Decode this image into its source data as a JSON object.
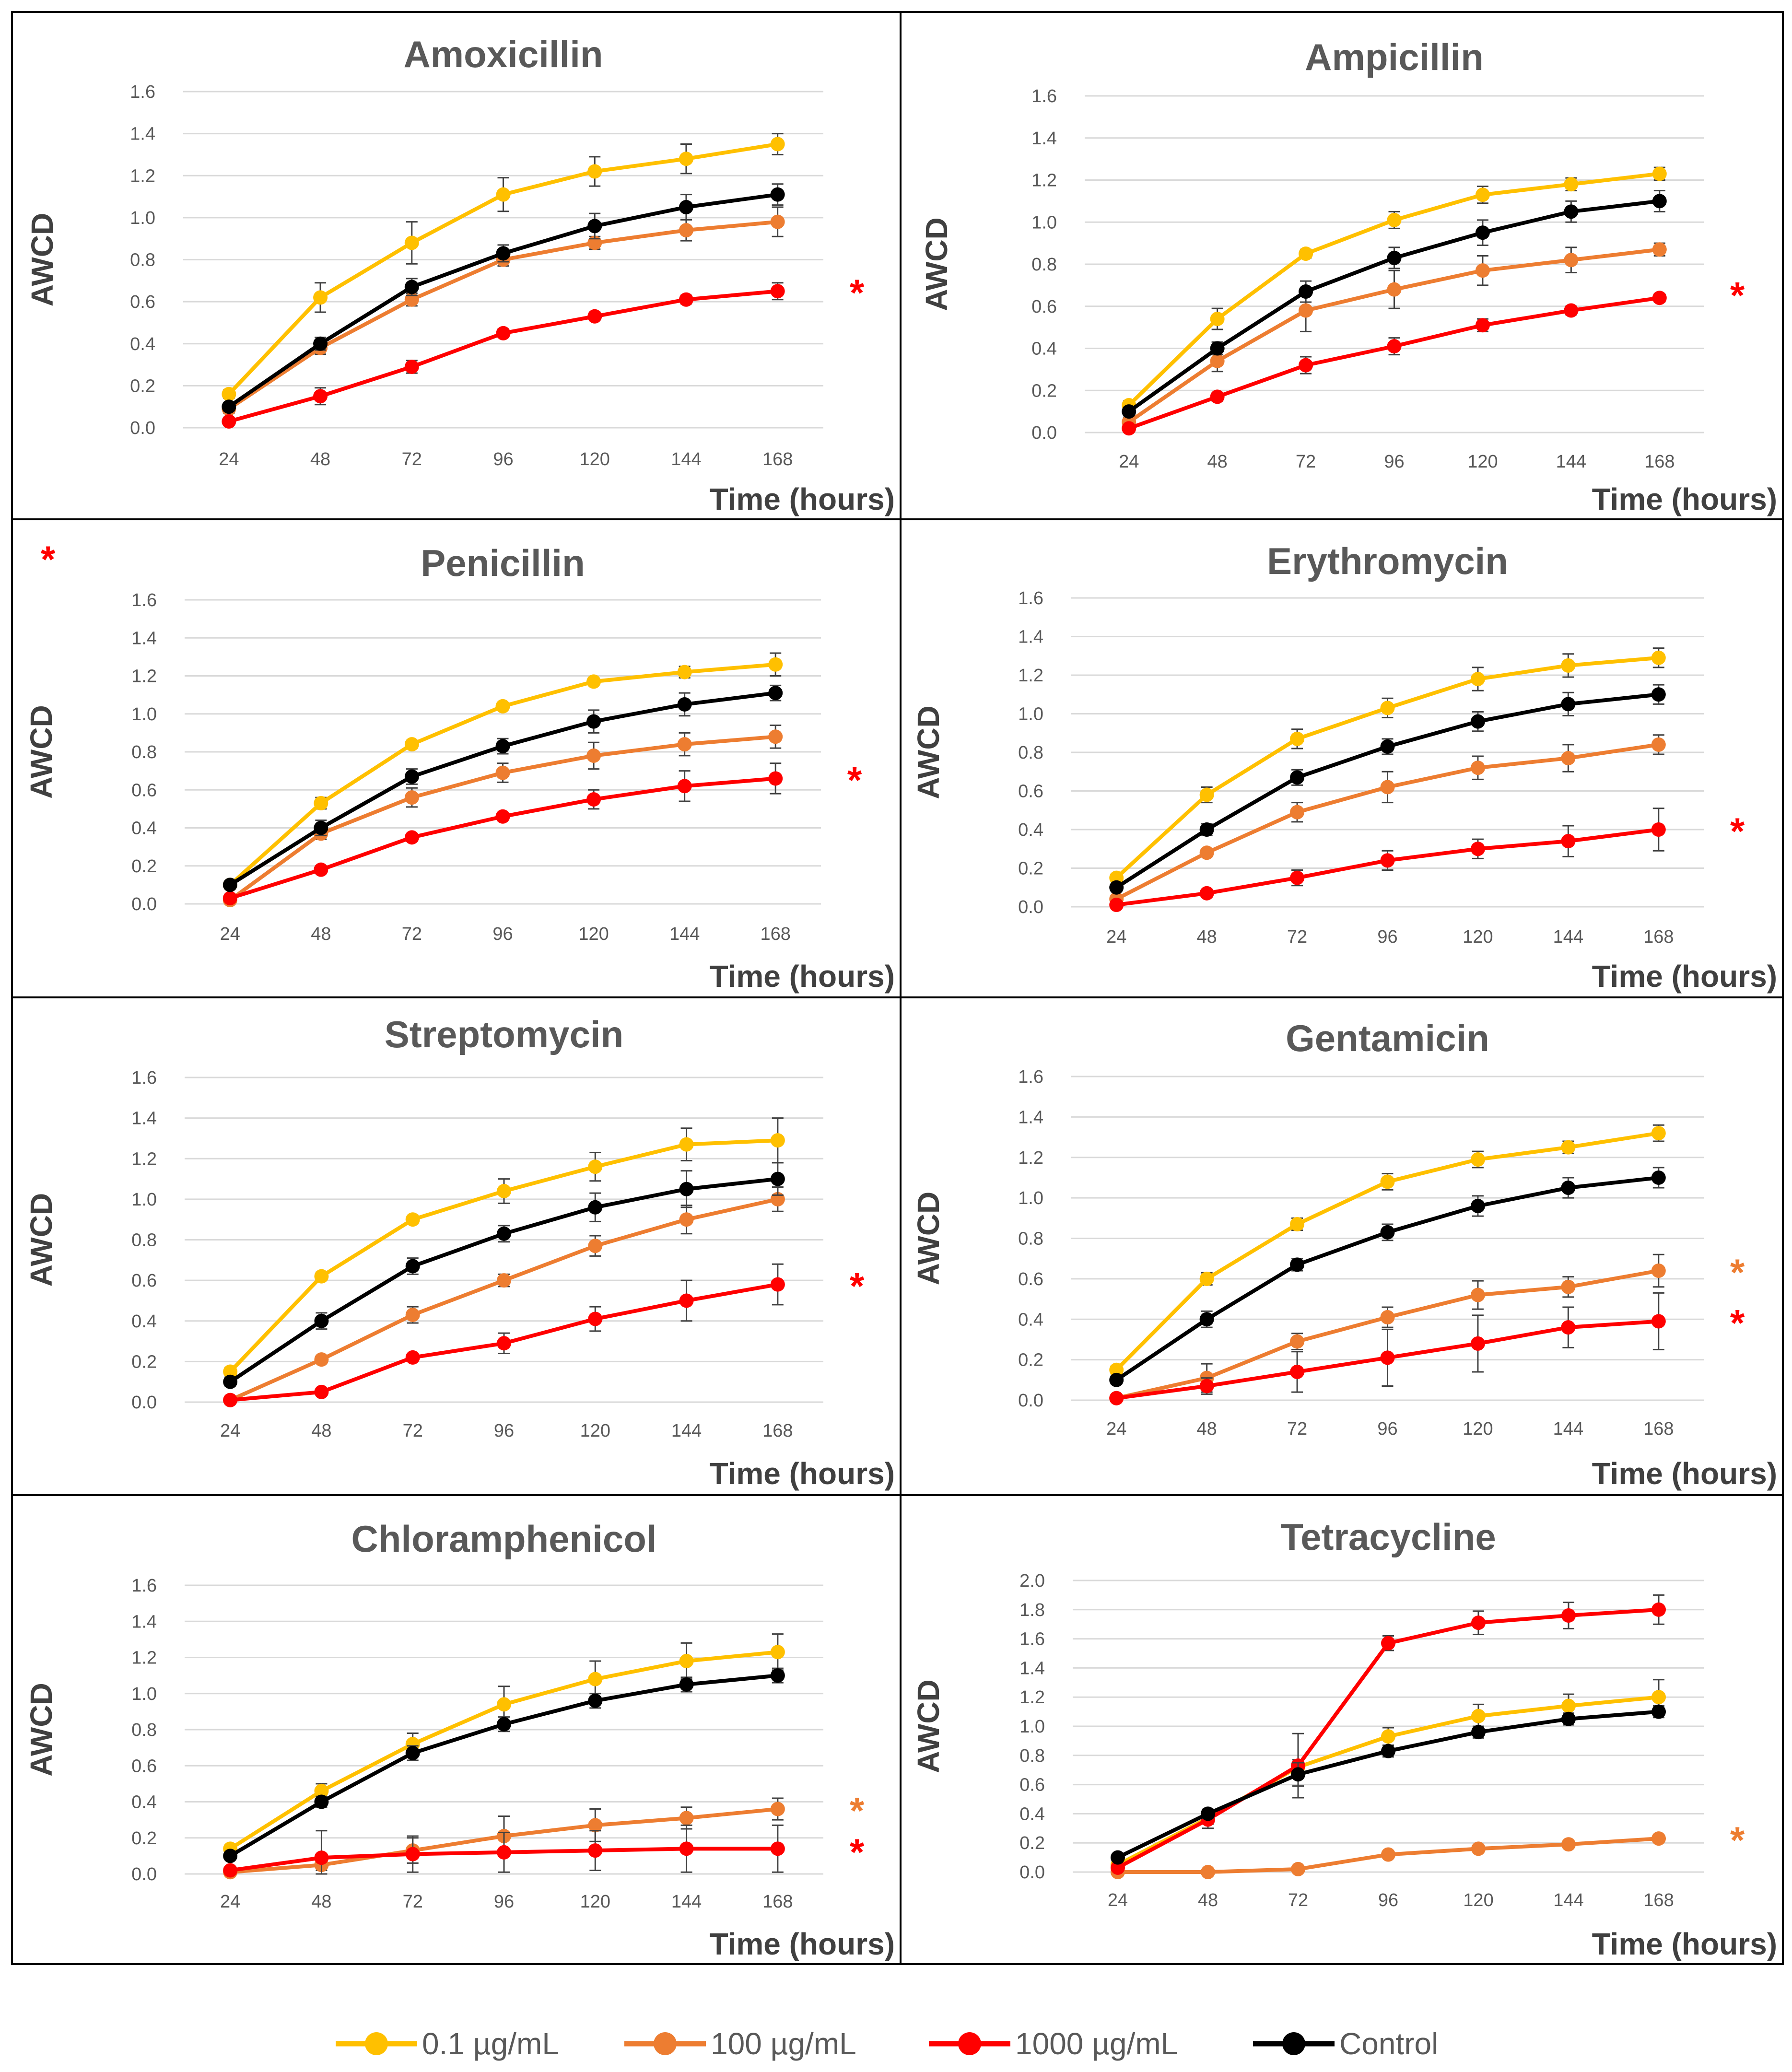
{
  "figure": {
    "xlabel": "Time (hours)",
    "ylabel": "AWCD",
    "legend_position": "bottom"
  },
  "legend": [
    {
      "label": "0.1 µg/mL",
      "color": "#FFC000"
    },
    {
      "label": "100 µg/mL",
      "color": "#ED7D31"
    },
    {
      "label": "1000 µg/mL",
      "color": "#FF0000"
    },
    {
      "label": "Control",
      "color": "#000000"
    }
  ],
  "chart_data": [
    {
      "type": "line",
      "title": "Amoxicillin",
      "xlabel": "Time (hours)",
      "ylabel": "AWCD",
      "x": [
        24,
        48,
        72,
        96,
        120,
        144,
        168
      ],
      "yticks": [
        "0.0",
        "0.2",
        "0.4",
        "0.6",
        "0.8",
        "1.0",
        "1.2",
        "1.4",
        "1.6"
      ],
      "ylim": [
        0,
        1.6
      ],
      "series": [
        {
          "name": "0.1 µg/mL",
          "color": "#FFC000",
          "values": [
            0.16,
            0.62,
            0.88,
            1.11,
            1.22,
            1.28,
            1.35
          ],
          "errors": [
            0.02,
            0.07,
            0.1,
            0.08,
            0.07,
            0.07,
            0.05
          ]
        },
        {
          "name": "100 µg/mL",
          "color": "#ED7D31",
          "values": [
            0.09,
            0.38,
            0.61,
            0.8,
            0.88,
            0.94,
            0.98
          ],
          "errors": [
            0.02,
            0.03,
            0.03,
            0.03,
            0.03,
            0.05,
            0.07
          ]
        },
        {
          "name": "1000 µg/mL",
          "color": "#FF0000",
          "values": [
            0.03,
            0.15,
            0.29,
            0.45,
            0.53,
            0.61,
            0.65
          ],
          "errors": [
            0.01,
            0.04,
            0.03,
            0.02,
            0.02,
            0.02,
            0.04
          ]
        },
        {
          "name": "Control",
          "color": "#000000",
          "values": [
            0.1,
            0.4,
            0.67,
            0.83,
            0.96,
            1.05,
            1.11
          ],
          "errors": [
            0.02,
            0.03,
            0.04,
            0.04,
            0.06,
            0.06,
            0.05
          ]
        }
      ],
      "significance": [
        {
          "symbol": "*",
          "color": "#FF0000",
          "at": 0.65
        }
      ]
    },
    {
      "type": "line",
      "title": "Ampicillin",
      "xlabel": "Time (hours)",
      "ylabel": "AWCD",
      "x": [
        24,
        48,
        72,
        96,
        120,
        144,
        168
      ],
      "yticks": [
        "0.0",
        "0.2",
        "0.4",
        "0.6",
        "0.8",
        "1.0",
        "1.2",
        "1.4",
        "1.6"
      ],
      "ylim": [
        0,
        1.6
      ],
      "series": [
        {
          "name": "0.1 µg/mL",
          "color": "#FFC000",
          "values": [
            0.13,
            0.54,
            0.85,
            1.01,
            1.13,
            1.18,
            1.23
          ],
          "errors": [
            0.02,
            0.05,
            0.02,
            0.04,
            0.04,
            0.03,
            0.03
          ]
        },
        {
          "name": "100 µg/mL",
          "color": "#ED7D31",
          "values": [
            0.05,
            0.34,
            0.58,
            0.68,
            0.77,
            0.82,
            0.87
          ],
          "errors": [
            0.02,
            0.05,
            0.1,
            0.09,
            0.07,
            0.06,
            0.03
          ]
        },
        {
          "name": "1000 µg/mL",
          "color": "#FF0000",
          "values": [
            0.02,
            0.17,
            0.32,
            0.41,
            0.51,
            0.58,
            0.64
          ],
          "errors": [
            0.01,
            0.02,
            0.04,
            0.04,
            0.03,
            0.02,
            0.02
          ]
        },
        {
          "name": "Control",
          "color": "#000000",
          "values": [
            0.1,
            0.4,
            0.67,
            0.83,
            0.95,
            1.05,
            1.1
          ],
          "errors": [
            0.02,
            0.03,
            0.05,
            0.05,
            0.06,
            0.05,
            0.05
          ]
        }
      ],
      "significance": [
        {
          "symbol": "*",
          "color": "#FF0000",
          "at": 0.66
        }
      ]
    },
    {
      "type": "line",
      "title": "Penicillin",
      "xlabel": "Time (hours)",
      "ylabel": "AWCD",
      "x": [
        24,
        48,
        72,
        96,
        120,
        144,
        168
      ],
      "yticks": [
        "0.0",
        "0.2",
        "0.4",
        "0.6",
        "0.8",
        "1.0",
        "1.2",
        "1.4",
        "1.6"
      ],
      "ylim": [
        0,
        1.6
      ],
      "series": [
        {
          "name": "0.1 µg/mL",
          "color": "#FFC000",
          "values": [
            0.1,
            0.53,
            0.84,
            1.04,
            1.17,
            1.22,
            1.26
          ],
          "errors": [
            0.02,
            0.03,
            0.02,
            0.02,
            0.02,
            0.03,
            0.06
          ]
        },
        {
          "name": "100 µg/mL",
          "color": "#ED7D31",
          "values": [
            0.02,
            0.37,
            0.56,
            0.69,
            0.78,
            0.84,
            0.88
          ],
          "errors": [
            0.01,
            0.03,
            0.05,
            0.05,
            0.07,
            0.06,
            0.06
          ]
        },
        {
          "name": "1000 µg/mL",
          "color": "#FF0000",
          "values": [
            0.03,
            0.18,
            0.35,
            0.46,
            0.55,
            0.62,
            0.66
          ],
          "errors": [
            0.01,
            0.02,
            0.02,
            0.02,
            0.05,
            0.08,
            0.08
          ]
        },
        {
          "name": "Control",
          "color": "#000000",
          "values": [
            0.1,
            0.4,
            0.67,
            0.83,
            0.96,
            1.05,
            1.11
          ],
          "errors": [
            0.02,
            0.04,
            0.04,
            0.04,
            0.06,
            0.06,
            0.04
          ]
        }
      ],
      "significance": [
        {
          "symbol": "*",
          "color": "#FF0000",
          "at": 0.66
        }
      ]
    },
    {
      "type": "line",
      "title": "Erythromycin",
      "xlabel": "Time (hours)",
      "ylabel": "AWCD",
      "x": [
        24,
        48,
        72,
        96,
        120,
        144,
        168
      ],
      "yticks": [
        "0.0",
        "0.2",
        "0.4",
        "0.6",
        "0.8",
        "1.0",
        "1.2",
        "1.4",
        "1.6"
      ],
      "ylim": [
        0,
        1.6
      ],
      "series": [
        {
          "name": "0.1 µg/mL",
          "color": "#FFC000",
          "values": [
            0.15,
            0.58,
            0.87,
            1.03,
            1.18,
            1.25,
            1.29
          ],
          "errors": [
            0.02,
            0.04,
            0.05,
            0.05,
            0.06,
            0.06,
            0.05
          ]
        },
        {
          "name": "100 µg/mL",
          "color": "#ED7D31",
          "values": [
            0.04,
            0.28,
            0.49,
            0.62,
            0.72,
            0.77,
            0.84
          ],
          "errors": [
            0.01,
            0.02,
            0.05,
            0.08,
            0.06,
            0.07,
            0.05
          ]
        },
        {
          "name": "1000 µg/mL",
          "color": "#FF0000",
          "values": [
            0.01,
            0.07,
            0.15,
            0.24,
            0.3,
            0.34,
            0.4
          ],
          "errors": [
            0.01,
            0.02,
            0.04,
            0.05,
            0.05,
            0.08,
            0.11
          ]
        },
        {
          "name": "Control",
          "color": "#000000",
          "values": [
            0.1,
            0.4,
            0.67,
            0.83,
            0.96,
            1.05,
            1.1
          ],
          "errors": [
            0.02,
            0.03,
            0.04,
            0.04,
            0.05,
            0.06,
            0.05
          ]
        }
      ],
      "significance": [
        {
          "symbol": "*",
          "color": "#FF0000",
          "at": 0.4
        }
      ]
    },
    {
      "type": "line",
      "title": "Streptomycin",
      "xlabel": "Time (hours)",
      "ylabel": "AWCD",
      "x": [
        24,
        48,
        72,
        96,
        120,
        144,
        168
      ],
      "yticks": [
        "0.0",
        "0.2",
        "0.4",
        "0.6",
        "0.8",
        "1.0",
        "1.2",
        "1.4",
        "1.6"
      ],
      "ylim": [
        0,
        1.6
      ],
      "series": [
        {
          "name": "0.1 µg/mL",
          "color": "#FFC000",
          "values": [
            0.15,
            0.62,
            0.9,
            1.04,
            1.16,
            1.27,
            1.29
          ],
          "errors": [
            0.02,
            0.02,
            0.02,
            0.06,
            0.07,
            0.08,
            0.11
          ]
        },
        {
          "name": "100 µg/mL",
          "color": "#ED7D31",
          "values": [
            0.01,
            0.21,
            0.43,
            0.6,
            0.77,
            0.9,
            1.0
          ],
          "errors": [
            0.01,
            0.02,
            0.04,
            0.03,
            0.05,
            0.07,
            0.06
          ]
        },
        {
          "name": "1000 µg/mL",
          "color": "#FF0000",
          "values": [
            0.01,
            0.05,
            0.22,
            0.29,
            0.41,
            0.5,
            0.58
          ],
          "errors": [
            0.01,
            0.01,
            0.02,
            0.05,
            0.06,
            0.1,
            0.1
          ]
        },
        {
          "name": "Control",
          "color": "#000000",
          "values": [
            0.1,
            0.4,
            0.67,
            0.83,
            0.96,
            1.05,
            1.1
          ],
          "errors": [
            0.02,
            0.04,
            0.04,
            0.04,
            0.07,
            0.09,
            0.08
          ]
        }
      ],
      "significance": [
        {
          "symbol": "*",
          "color": "#FF0000",
          "at": 0.58
        }
      ]
    },
    {
      "type": "line",
      "title": "Gentamicin",
      "xlabel": "Time (hours)",
      "ylabel": "AWCD",
      "x": [
        24,
        48,
        72,
        96,
        120,
        144,
        168
      ],
      "yticks": [
        "0.0",
        "0.2",
        "0.4",
        "0.6",
        "0.8",
        "1.0",
        "1.2",
        "1.4",
        "1.6"
      ],
      "ylim": [
        0,
        1.6
      ],
      "series": [
        {
          "name": "0.1 µg/mL",
          "color": "#FFC000",
          "values": [
            0.15,
            0.6,
            0.87,
            1.08,
            1.19,
            1.25,
            1.32
          ],
          "errors": [
            0.02,
            0.03,
            0.03,
            0.04,
            0.04,
            0.03,
            0.04
          ]
        },
        {
          "name": "100 µg/mL",
          "color": "#ED7D31",
          "values": [
            0.01,
            0.11,
            0.29,
            0.41,
            0.52,
            0.56,
            0.64
          ],
          "errors": [
            0.01,
            0.07,
            0.04,
            0.05,
            0.07,
            0.05,
            0.08
          ]
        },
        {
          "name": "1000 µg/mL",
          "color": "#FF0000",
          "values": [
            0.01,
            0.07,
            0.14,
            0.21,
            0.28,
            0.36,
            0.39
          ],
          "errors": [
            0.01,
            0.04,
            0.1,
            0.14,
            0.14,
            0.1,
            0.14
          ]
        },
        {
          "name": "Control",
          "color": "#000000",
          "values": [
            0.1,
            0.4,
            0.67,
            0.83,
            0.96,
            1.05,
            1.1
          ],
          "errors": [
            0.02,
            0.04,
            0.03,
            0.04,
            0.05,
            0.05,
            0.05
          ]
        }
      ],
      "significance": [
        {
          "symbol": "*",
          "color": "#ED7D31",
          "at": 0.64
        },
        {
          "symbol": "*",
          "color": "#FF0000",
          "at": 0.39
        }
      ]
    },
    {
      "type": "line",
      "title": "Chloramphenicol",
      "xlabel": "Time (hours)",
      "ylabel": "AWCD",
      "x": [
        24,
        48,
        72,
        96,
        120,
        144,
        168
      ],
      "yticks": [
        "0.0",
        "0.2",
        "0.4",
        "0.6",
        "0.8",
        "1.0",
        "1.2",
        "1.4",
        "1.6"
      ],
      "ylim": [
        0,
        1.6
      ],
      "series": [
        {
          "name": "0.1 µg/mL",
          "color": "#FFC000",
          "values": [
            0.14,
            0.46,
            0.72,
            0.94,
            1.08,
            1.18,
            1.23
          ],
          "errors": [
            0.02,
            0.04,
            0.06,
            0.1,
            0.1,
            0.1,
            0.1
          ]
        },
        {
          "name": "100 µg/mL",
          "color": "#ED7D31",
          "values": [
            0.01,
            0.05,
            0.13,
            0.21,
            0.27,
            0.31,
            0.36
          ],
          "errors": [
            0.01,
            0.03,
            0.07,
            0.11,
            0.09,
            0.06,
            0.06
          ]
        },
        {
          "name": "1000 µg/mL",
          "color": "#FF0000",
          "values": [
            0.02,
            0.09,
            0.11,
            0.12,
            0.13,
            0.14,
            0.14
          ],
          "errors": [
            0.01,
            0.15,
            0.1,
            0.11,
            0.11,
            0.13,
            0.13
          ]
        },
        {
          "name": "Control",
          "color": "#000000",
          "values": [
            0.1,
            0.4,
            0.67,
            0.83,
            0.96,
            1.05,
            1.1
          ],
          "errors": [
            0.02,
            0.03,
            0.04,
            0.04,
            0.04,
            0.04,
            0.04
          ]
        }
      ],
      "significance": [
        {
          "symbol": "*",
          "color": "#ED7D31",
          "at": 0.36
        },
        {
          "symbol": "*",
          "color": "#FF0000",
          "at": 0.13
        }
      ]
    },
    {
      "type": "line",
      "title": "Tetracycline",
      "xlabel": "Time (hours)",
      "ylabel": "AWCD",
      "x": [
        24,
        48,
        72,
        96,
        120,
        144,
        168
      ],
      "yticks": [
        "0.0",
        "0.2",
        "0.4",
        "0.6",
        "0.8",
        "1.0",
        "1.2",
        "1.4",
        "1.6",
        "1.8",
        "2.0"
      ],
      "ylim": [
        0,
        2.0
      ],
      "series": [
        {
          "name": "0.1 µg/mL",
          "color": "#FFC000",
          "values": [
            0.05,
            0.37,
            0.72,
            0.93,
            1.07,
            1.14,
            1.2
          ],
          "errors": [
            0.02,
            0.04,
            0.05,
            0.06,
            0.08,
            0.08,
            0.12
          ]
        },
        {
          "name": "100 µg/mL",
          "color": "#ED7D31",
          "values": [
            0.0,
            0.0,
            0.02,
            0.12,
            0.16,
            0.19,
            0.23
          ],
          "errors": [
            0.0,
            0.0,
            0.0,
            0.02,
            0.02,
            0.02,
            0.02
          ]
        },
        {
          "name": "1000 µg/mL",
          "color": "#FF0000",
          "values": [
            0.03,
            0.36,
            0.73,
            1.57,
            1.71,
            1.76,
            1.8
          ],
          "errors": [
            0.01,
            0.06,
            0.22,
            0.05,
            0.08,
            0.09,
            0.1
          ]
        },
        {
          "name": "Control",
          "color": "#000000",
          "values": [
            0.1,
            0.4,
            0.67,
            0.83,
            0.96,
            1.05,
            1.1
          ],
          "errors": [
            0.02,
            0.03,
            0.08,
            0.04,
            0.04,
            0.04,
            0.04
          ]
        }
      ],
      "significance": [
        {
          "symbol": "*",
          "color": "#ED7D31",
          "at": 0.23
        }
      ]
    }
  ]
}
